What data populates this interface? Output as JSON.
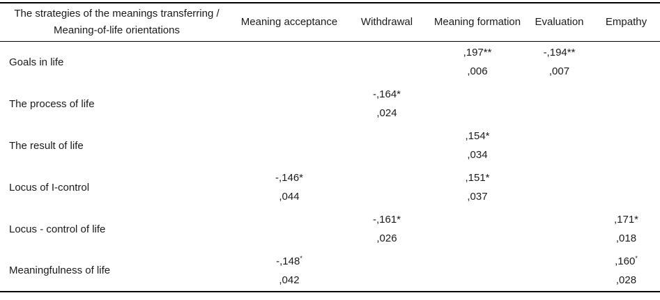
{
  "table": {
    "corner_header": {
      "line1": "The strategies of the meanings transferring /",
      "line2": "Meaning-of-life orientations"
    },
    "columns": [
      "Meaning acceptance",
      "Withdrawal",
      "Meaning formation",
      "Evaluation",
      "Empathy"
    ],
    "rows": [
      {
        "label": "Goals in life",
        "cells": [
          null,
          null,
          {
            "value": ",197**",
            "p": ",006"
          },
          {
            "value": "-,194**",
            "p": ",007"
          },
          null
        ]
      },
      {
        "label": "The process of life",
        "cells": [
          null,
          {
            "value": "-,164*",
            "p": ",024"
          },
          null,
          null,
          null
        ]
      },
      {
        "label": "The result of life",
        "cells": [
          null,
          null,
          {
            "value": ",154*",
            "p": ",034"
          },
          null,
          null
        ]
      },
      {
        "label": "Locus of I-control",
        "cells": [
          {
            "value": "-,146*",
            "p": ",044"
          },
          null,
          {
            "value": ",151*",
            "p": ",037"
          },
          null,
          null
        ]
      },
      {
        "label": "Locus - control of life",
        "cells": [
          null,
          {
            "value": "-,161*",
            "p": ",026"
          },
          null,
          null,
          {
            "value": ",171*",
            "p": ",018"
          }
        ]
      },
      {
        "label": "Meaningfulness of life",
        "cells": [
          {
            "value": "-,148*",
            "p": ",042",
            "sup_asterisk": true
          },
          null,
          null,
          null,
          {
            "value": ",160*",
            "p": ",028",
            "sup_asterisk": true
          }
        ]
      }
    ],
    "colors": {
      "text": "#1a1a1a",
      "border": "#000000",
      "background": "#ffffff"
    }
  }
}
